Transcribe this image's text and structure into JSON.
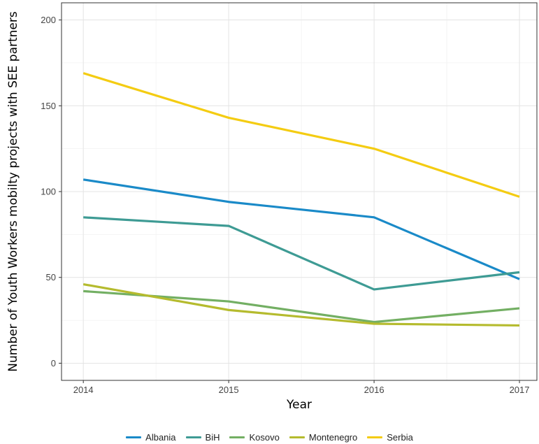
{
  "chart_data": {
    "type": "line",
    "xlabel": "Year",
    "ylabel": "Number of Youth Workers mobilty projects with SEE partners",
    "x": [
      2014,
      2015,
      2016,
      2017
    ],
    "x_ticks": [
      "2014",
      "2015",
      "2016",
      "2017"
    ],
    "y_ticks": [
      "0",
      "50",
      "100",
      "150",
      "200"
    ],
    "ylim": [
      -10,
      210
    ],
    "xlim": [
      2013.85,
      2017.12
    ],
    "grid": true,
    "legend_position": "bottom",
    "series": [
      {
        "name": "Albania",
        "color": "#1A8AC8",
        "values": [
          107,
          94,
          85,
          49
        ]
      },
      {
        "name": "BiH",
        "color": "#3E9B94",
        "values": [
          85,
          80,
          43,
          53
        ]
      },
      {
        "name": "Kosovo",
        "color": "#73AF63",
        "values": [
          42,
          36,
          24,
          32
        ]
      },
      {
        "name": "Montenegro",
        "color": "#B5BB2E",
        "values": [
          46,
          31,
          23,
          22
        ]
      },
      {
        "name": "Serbia",
        "color": "#F4CC12",
        "values": [
          169,
          143,
          125,
          97
        ]
      }
    ]
  }
}
